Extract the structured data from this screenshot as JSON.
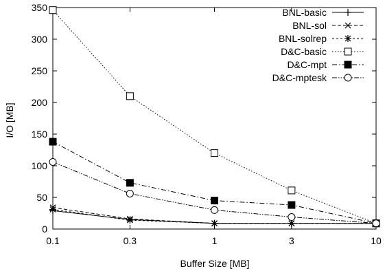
{
  "chart_data": {
    "type": "line",
    "xlabel": "Buffer Size [MB]",
    "ylabel": "I/O [MB]",
    "x_scale": "log",
    "x": [
      0.1,
      0.3,
      1,
      3,
      10
    ],
    "x_ticks": [
      "0.1",
      "0.3",
      "1",
      "3",
      "10"
    ],
    "ylim": [
      0,
      350
    ],
    "y_ticks": [
      "0",
      "50",
      "100",
      "150",
      "200",
      "250",
      "300",
      "350"
    ],
    "grid": false,
    "legend_position": "top-right",
    "series": [
      {
        "name": "BNL-basic",
        "values": [
          29,
          15,
          9,
          9,
          9
        ],
        "marker": "plus",
        "dash": "solid"
      },
      {
        "name": "BNL-sol",
        "values": [
          34,
          16,
          9,
          9,
          9
        ],
        "marker": "cross",
        "dash": "dashed"
      },
      {
        "name": "BNL-solrep",
        "values": [
          31,
          14,
          9,
          9,
          9
        ],
        "marker": "star",
        "dash": "short-dashed"
      },
      {
        "name": "D&C-basic",
        "values": [
          346,
          210,
          120,
          61,
          9
        ],
        "marker": "open-square",
        "dash": "dotted"
      },
      {
        "name": "D&C-mpt",
        "values": [
          138,
          73,
          45,
          38,
          9
        ],
        "marker": "filled-square",
        "dash": "dash-dot"
      },
      {
        "name": "D&C-mptesk",
        "values": [
          106,
          56,
          30,
          19,
          9
        ],
        "marker": "open-circle",
        "dash": "dash-dot-dot"
      }
    ]
  }
}
